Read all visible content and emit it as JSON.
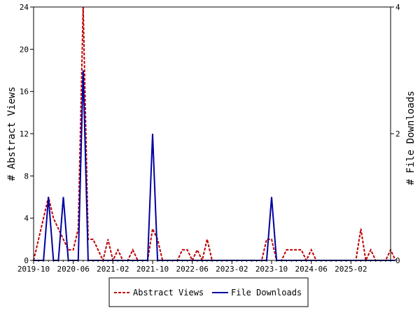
{
  "chart_data": {
    "type": "line",
    "x_tick_labels": [
      "2019-10",
      "2020-06",
      "2021-02",
      "2021-10",
      "2022-06",
      "2023-02",
      "2023-10",
      "2024-06",
      "2025-02"
    ],
    "x_range": [
      "2019-10",
      "2025-10"
    ],
    "y_left": {
      "label": "# Abstract Views",
      "range": [
        0,
        24
      ],
      "ticks": [
        0,
        4,
        8,
        12,
        16,
        20,
        24
      ]
    },
    "y_right": {
      "label": "# File Downloads",
      "range": [
        0,
        4
      ],
      "ticks": [
        0,
        2,
        4
      ]
    },
    "grid": false,
    "legend_position": "bottom",
    "series": [
      {
        "name": "Abstract Views",
        "axis": "left",
        "style": "dashed",
        "color": "#c00000",
        "points": [
          [
            "2019-10",
            0
          ],
          [
            "2019-11",
            2
          ],
          [
            "2019-12",
            4
          ],
          [
            "2020-01",
            6
          ],
          [
            "2020-02",
            4
          ],
          [
            "2020-03",
            3
          ],
          [
            "2020-04",
            2
          ],
          [
            "2020-05",
            1
          ],
          [
            "2020-06",
            1
          ],
          [
            "2020-07",
            3
          ],
          [
            "2020-08",
            24
          ],
          [
            "2020-09",
            2
          ],
          [
            "2020-10",
            2
          ],
          [
            "2020-11",
            1
          ],
          [
            "2020-12",
            0
          ],
          [
            "2021-01",
            2
          ],
          [
            "2021-02",
            0
          ],
          [
            "2021-03",
            1
          ],
          [
            "2021-04",
            0
          ],
          [
            "2021-05",
            0
          ],
          [
            "2021-06",
            1
          ],
          [
            "2021-07",
            0
          ],
          [
            "2021-08",
            0
          ],
          [
            "2021-09",
            0
          ],
          [
            "2021-10",
            3
          ],
          [
            "2021-11",
            2
          ],
          [
            "2021-12",
            0
          ],
          [
            "2022-01",
            0
          ],
          [
            "2022-02",
            0
          ],
          [
            "2022-03",
            0
          ],
          [
            "2022-04",
            1
          ],
          [
            "2022-05",
            1
          ],
          [
            "2022-06",
            0
          ],
          [
            "2022-07",
            1
          ],
          [
            "2022-08",
            0
          ],
          [
            "2022-09",
            2
          ],
          [
            "2022-10",
            0
          ],
          [
            "2022-11",
            0
          ],
          [
            "2022-12",
            0
          ],
          [
            "2023-01",
            0
          ],
          [
            "2023-02",
            0
          ],
          [
            "2023-03",
            0
          ],
          [
            "2023-04",
            0
          ],
          [
            "2023-05",
            0
          ],
          [
            "2023-06",
            0
          ],
          [
            "2023-07",
            0
          ],
          [
            "2023-08",
            0
          ],
          [
            "2023-09",
            2
          ],
          [
            "2023-10",
            2
          ],
          [
            "2023-11",
            0
          ],
          [
            "2023-12",
            0
          ],
          [
            "2024-01",
            1
          ],
          [
            "2024-02",
            1
          ],
          [
            "2024-03",
            1
          ],
          [
            "2024-04",
            1
          ],
          [
            "2024-05",
            0
          ],
          [
            "2024-06",
            1
          ],
          [
            "2024-07",
            0
          ],
          [
            "2024-08",
            0
          ],
          [
            "2024-09",
            0
          ],
          [
            "2024-10",
            0
          ],
          [
            "2024-11",
            0
          ],
          [
            "2024-12",
            0
          ],
          [
            "2025-01",
            0
          ],
          [
            "2025-02",
            0
          ],
          [
            "2025-03",
            0
          ],
          [
            "2025-04",
            3
          ],
          [
            "2025-05",
            0
          ],
          [
            "2025-06",
            1
          ],
          [
            "2025-07",
            0
          ],
          [
            "2025-08",
            0
          ],
          [
            "2025-09",
            0
          ],
          [
            "2025-10",
            1
          ],
          [
            "2025-11",
            0
          ]
        ]
      },
      {
        "name": "File Downloads",
        "axis": "right",
        "style": "solid",
        "color": "#0000a0",
        "points": [
          [
            "2019-10",
            0
          ],
          [
            "2019-11",
            0
          ],
          [
            "2019-12",
            0
          ],
          [
            "2020-01",
            1
          ],
          [
            "2020-02",
            0
          ],
          [
            "2020-03",
            0
          ],
          [
            "2020-04",
            1
          ],
          [
            "2020-05",
            0
          ],
          [
            "2020-06",
            0
          ],
          [
            "2020-07",
            0
          ],
          [
            "2020-08",
            3
          ],
          [
            "2020-09",
            0
          ],
          [
            "2020-10",
            0
          ],
          [
            "2020-11",
            0
          ],
          [
            "2020-12",
            0
          ],
          [
            "2021-01",
            0
          ],
          [
            "2021-02",
            0
          ],
          [
            "2021-03",
            0
          ],
          [
            "2021-04",
            0
          ],
          [
            "2021-05",
            0
          ],
          [
            "2021-06",
            0
          ],
          [
            "2021-07",
            0
          ],
          [
            "2021-08",
            0
          ],
          [
            "2021-09",
            0
          ],
          [
            "2021-10",
            2
          ],
          [
            "2021-11",
            0
          ],
          [
            "2021-12",
            0
          ],
          [
            "2022-01",
            0
          ],
          [
            "2022-02",
            0
          ],
          [
            "2022-03",
            0
          ],
          [
            "2022-04",
            0
          ],
          [
            "2022-05",
            0
          ],
          [
            "2022-06",
            0
          ],
          [
            "2022-07",
            0
          ],
          [
            "2022-08",
            0
          ],
          [
            "2022-09",
            0
          ],
          [
            "2022-10",
            0
          ],
          [
            "2022-11",
            0
          ],
          [
            "2022-12",
            0
          ],
          [
            "2023-01",
            0
          ],
          [
            "2023-02",
            0
          ],
          [
            "2023-03",
            0
          ],
          [
            "2023-04",
            0
          ],
          [
            "2023-05",
            0
          ],
          [
            "2023-06",
            0
          ],
          [
            "2023-07",
            0
          ],
          [
            "2023-08",
            0
          ],
          [
            "2023-09",
            0
          ],
          [
            "2023-10",
            1
          ],
          [
            "2023-11",
            0
          ],
          [
            "2023-12",
            0
          ],
          [
            "2024-01",
            0
          ],
          [
            "2024-02",
            0
          ],
          [
            "2024-03",
            0
          ],
          [
            "2024-04",
            0
          ],
          [
            "2024-05",
            0
          ],
          [
            "2024-06",
            0
          ],
          [
            "2024-07",
            0
          ],
          [
            "2024-08",
            0
          ],
          [
            "2024-09",
            0
          ],
          [
            "2024-10",
            0
          ],
          [
            "2024-11",
            0
          ],
          [
            "2024-12",
            0
          ],
          [
            "2025-01",
            0
          ],
          [
            "2025-02",
            0
          ],
          [
            "2025-03",
            0
          ],
          [
            "2025-04",
            0
          ],
          [
            "2025-05",
            0
          ],
          [
            "2025-06",
            0
          ],
          [
            "2025-07",
            0
          ],
          [
            "2025-08",
            0
          ],
          [
            "2025-09",
            0
          ],
          [
            "2025-10",
            0
          ],
          [
            "2025-11",
            0
          ]
        ]
      }
    ]
  }
}
